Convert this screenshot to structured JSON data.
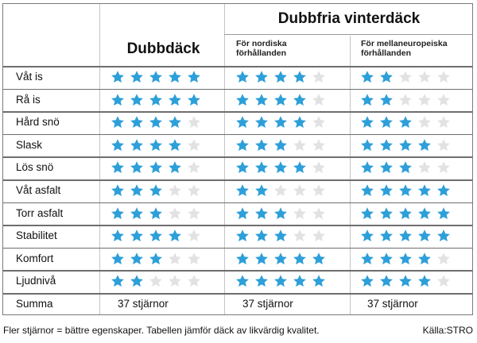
{
  "colors": {
    "star_on": "#2d9fd9",
    "star_off": "#e2e2e2"
  },
  "header": {
    "col1": "Dubbdäck",
    "group": "Dubbfria vinterdäck",
    "col2_line1": "För nordiska",
    "col2_line2": "förhållanden",
    "col3_line1": "För mellaneuropeiska",
    "col3_line2": "förhållanden"
  },
  "rows": [
    {
      "label": "Våt is",
      "dubb": 5,
      "nordisk": 4,
      "mellan": 2
    },
    {
      "label": "Rå is",
      "dubb": 5,
      "nordisk": 4,
      "mellan": 2
    },
    {
      "label": "Hård snö",
      "dubb": 4,
      "nordisk": 4,
      "mellan": 3
    },
    {
      "label": "Slask",
      "dubb": 4,
      "nordisk": 3,
      "mellan": 4
    },
    {
      "label": "Lös snö",
      "dubb": 4,
      "nordisk": 4,
      "mellan": 3
    },
    {
      "label": "Våt asfalt",
      "dubb": 3,
      "nordisk": 2,
      "mellan": 5
    },
    {
      "label": "Torr asfalt",
      "dubb": 3,
      "nordisk": 3,
      "mellan": 5
    },
    {
      "label": "Stabilitet",
      "dubb": 4,
      "nordisk": 3,
      "mellan": 5
    },
    {
      "label": "Komfort",
      "dubb": 3,
      "nordisk": 5,
      "mellan": 4
    },
    {
      "label": "Ljudnivå",
      "dubb": 2,
      "nordisk": 5,
      "mellan": 4
    }
  ],
  "summary": {
    "label": "Summa",
    "dubb": "37 stjärnor",
    "nordisk": "37 stjärnor",
    "mellan": "37 stjärnor"
  },
  "footer": {
    "note": "Fler stjärnor = bättre egenskaper. Tabellen jämför däck av likvärdig kvalitet.",
    "source": "Källa:STRO"
  },
  "chart_data": {
    "type": "table",
    "title": "Dubbdäck vs Dubbfria vinterdäck",
    "columns": [
      "Dubbdäck",
      "Dubbfria – För nordiska förhållanden",
      "Dubbfria – För mellaneuropeiska förhållanden"
    ],
    "categories": [
      "Våt is",
      "Rå is",
      "Hård snö",
      "Slask",
      "Lös snö",
      "Våt asfalt",
      "Torr asfalt",
      "Stabilitet",
      "Komfort",
      "Ljudnivå"
    ],
    "series": [
      {
        "name": "Dubbdäck",
        "values": [
          5,
          5,
          4,
          4,
          4,
          3,
          3,
          4,
          3,
          2
        ]
      },
      {
        "name": "För nordiska förhållanden",
        "values": [
          4,
          4,
          4,
          3,
          4,
          2,
          3,
          3,
          5,
          5
        ]
      },
      {
        "name": "För mellaneuropeiska förhållanden",
        "values": [
          2,
          2,
          3,
          4,
          3,
          5,
          5,
          5,
          4,
          4
        ]
      }
    ],
    "totals": [
      37,
      37,
      37
    ],
    "scale_max": 5
  }
}
